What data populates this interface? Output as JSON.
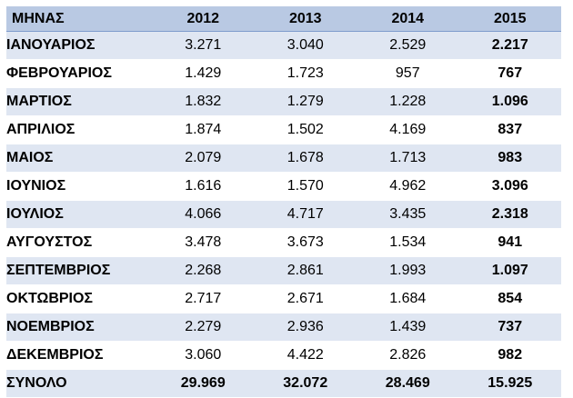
{
  "table": {
    "headers": [
      "ΜΗΝΑΣ",
      "2012",
      "2013",
      "2014",
      "2015"
    ],
    "rows": [
      [
        "ΙΑΝΟΥΑΡΙΟΣ",
        "3.271",
        "3.040",
        "2.529",
        "2.217"
      ],
      [
        "ΦΕΒΡΟΥΑΡΙΟΣ",
        "1.429",
        "1.723",
        "957",
        "767"
      ],
      [
        "ΜΑΡΤΙΟΣ",
        "1.832",
        "1.279",
        "1.228",
        "1.096"
      ],
      [
        "ΑΠΡΙΛΙΟΣ",
        "1.874",
        "1.502",
        "4.169",
        "837"
      ],
      [
        "ΜΑΙΟΣ",
        "2.079",
        "1.678",
        "1.713",
        "983"
      ],
      [
        "ΙΟΥΝΙΟΣ",
        "1.616",
        "1.570",
        "4.962",
        "3.096"
      ],
      [
        "ΙΟΥΛΙΟΣ",
        "4.066",
        "4.717",
        "3.435",
        "2.318"
      ],
      [
        "ΑΥΓΟΥΣΤΟΣ",
        "3.478",
        "3.673",
        "1.534",
        "941"
      ],
      [
        "ΣΕΠΤΕΜΒΡΙΟΣ",
        "2.268",
        "2.861",
        "1.993",
        "1.097"
      ],
      [
        "ΟΚΤΩΒΡΙΟΣ",
        "2.717",
        "2.671",
        "1.684",
        "854"
      ],
      [
        "ΝΟΕΜΒΡΙΟΣ",
        "2.279",
        "2.936",
        "1.439",
        "737"
      ],
      [
        "ΔΕΚΕΜΒΡΙΟΣ",
        "3.060",
        "4.422",
        "2.826",
        "982"
      ]
    ],
    "total": [
      "ΣΥΝΟΛΟ",
      "29.969",
      "32.072",
      "28.469",
      "15.925"
    ]
  },
  "colors": {
    "header_bg": "#b9c9e3",
    "band_bg": "#dfe6f2",
    "row_bg": "#ffffff",
    "rule": "#7f9ccc"
  }
}
